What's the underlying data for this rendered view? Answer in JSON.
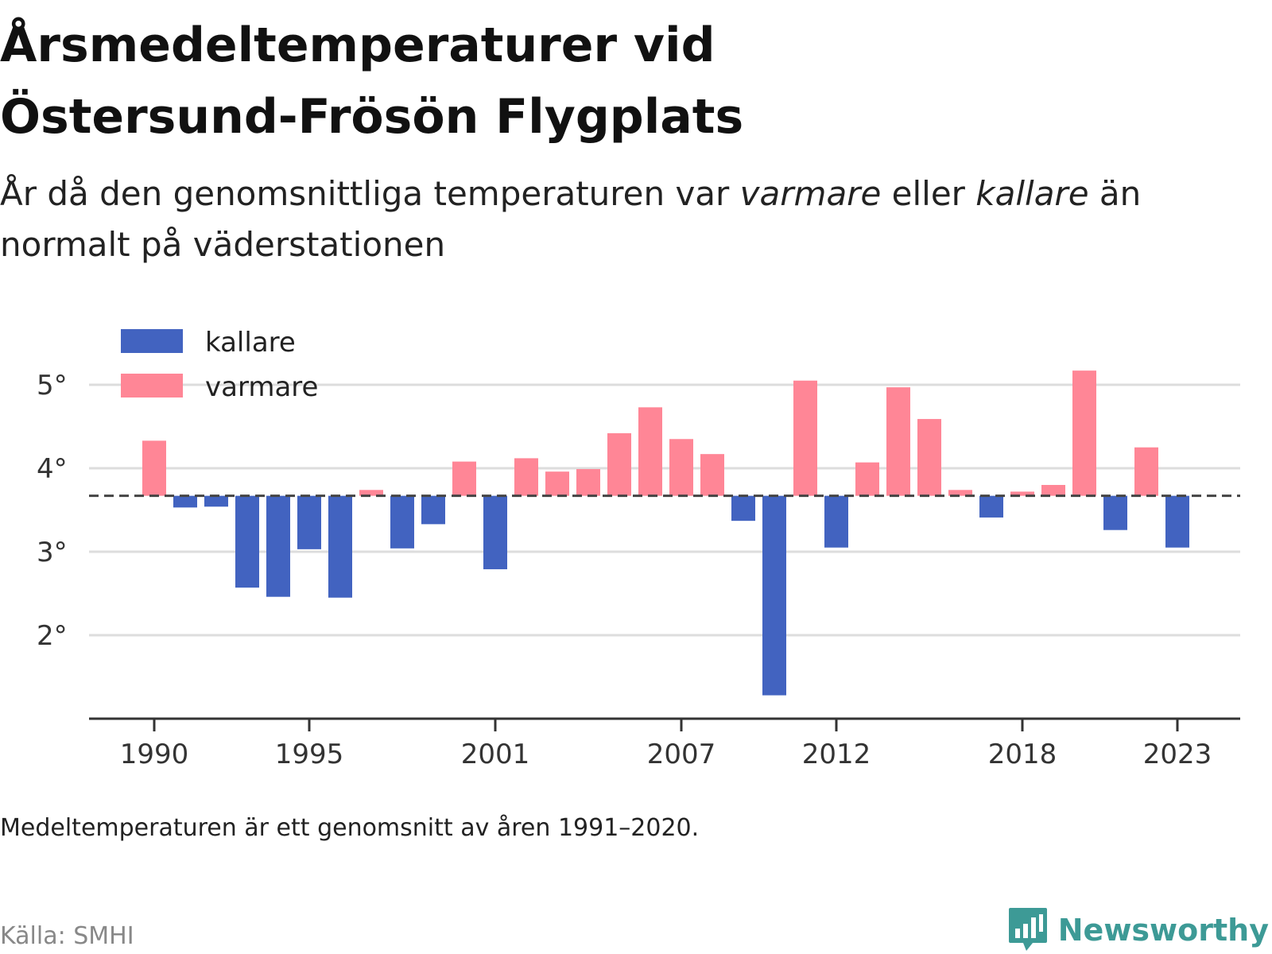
{
  "header": {
    "title": "Årsmedeltemperaturer vid Östersund-Frösön Flygplats",
    "subtitle_part1": "År då den genomsnittliga temperaturen var ",
    "subtitle_warm": "varmare",
    "subtitle_part2": " eller ",
    "subtitle_cold": "kallare",
    "subtitle_part3": " än normalt på väderstationen"
  },
  "note": "Medeltemperaturen är ett genomsnitt av åren 1991–2020.",
  "source": "Källa: SMHI",
  "brand": {
    "name": "Newsworthy",
    "icon": "bar-chart-speech-icon",
    "color": "#3d9a96"
  },
  "colors": {
    "cold": "#4263c0",
    "warm": "#ff8696",
    "grid": "#dddddd",
    "axis": "#333333",
    "baseline": "#444444"
  },
  "chart_data": {
    "type": "bar",
    "baseline": 3.67,
    "ylim": [
      1.0,
      5.8
    ],
    "yticks": [
      2,
      3,
      4,
      5
    ],
    "ytick_labels": [
      "2°",
      "3°",
      "4°",
      "5°"
    ],
    "xticks": [
      1990,
      1995,
      2001,
      2007,
      2012,
      2018,
      2023
    ],
    "xtick_labels": [
      "1990",
      "1995",
      "2001",
      "2007",
      "2012",
      "2018",
      "2023"
    ],
    "legend": [
      {
        "key": "cold",
        "label": "kallare"
      },
      {
        "key": "warm",
        "label": "varmare"
      }
    ],
    "legend_position": "top-left",
    "grid": true,
    "years": [
      1990,
      1991,
      1992,
      1993,
      1994,
      1995,
      1996,
      1997,
      1998,
      1999,
      2000,
      2001,
      2002,
      2003,
      2004,
      2005,
      2006,
      2007,
      2008,
      2009,
      2010,
      2011,
      2012,
      2013,
      2014,
      2015,
      2016,
      2017,
      2018,
      2019,
      2020,
      2021,
      2022,
      2023
    ],
    "values": [
      4.33,
      3.53,
      3.54,
      2.57,
      2.46,
      3.03,
      2.45,
      3.74,
      3.04,
      3.33,
      4.08,
      2.79,
      4.12,
      3.96,
      3.99,
      4.42,
      4.73,
      4.35,
      4.17,
      3.37,
      1.28,
      5.05,
      3.05,
      4.07,
      4.97,
      4.59,
      3.74,
      3.41,
      3.72,
      3.8,
      5.17,
      3.26,
      4.25,
      3.05
    ]
  }
}
